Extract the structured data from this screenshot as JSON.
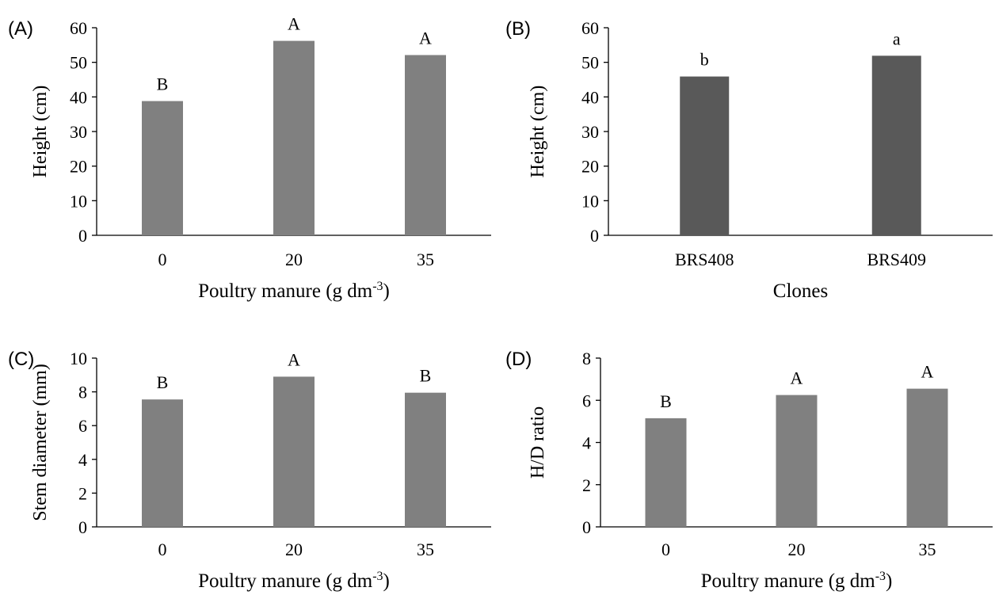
{
  "chart_data": [
    {
      "panel": "(A)",
      "type": "bar",
      "categories": [
        "0",
        "20",
        "35"
      ],
      "values": [
        38.8,
        56.2,
        52.1
      ],
      "letters": [
        "B",
        "A",
        "A"
      ],
      "xlabel": "Poultry manure (g dm",
      "xlabel_sup": "-3",
      "xlabel_end": ")",
      "ylabel": "Height (cm)",
      "ylim": [
        0,
        60
      ],
      "yticks": [
        0,
        10,
        20,
        30,
        40,
        50,
        60
      ],
      "color": "#808080",
      "grid": false,
      "legend": "none"
    },
    {
      "panel": "(B)",
      "type": "bar",
      "categories": [
        "BRS408",
        "BRS409"
      ],
      "values": [
        45.9,
        51.9
      ],
      "letters": [
        "b",
        "a"
      ],
      "xlabel": "Clones",
      "xlabel_sup": "",
      "xlabel_end": "",
      "ylabel": "Height (cm)",
      "ylim": [
        0,
        60
      ],
      "yticks": [
        0,
        10,
        20,
        30,
        40,
        50,
        60
      ],
      "color": "#595959",
      "grid": false,
      "legend": "none"
    },
    {
      "panel": "(C)",
      "type": "bar",
      "categories": [
        "0",
        "20",
        "35"
      ],
      "values": [
        7.55,
        8.9,
        7.95
      ],
      "letters": [
        "B",
        "A",
        "B"
      ],
      "xlabel": "Poultry manure (g dm",
      "xlabel_sup": "-3",
      "xlabel_end": ")",
      "ylabel": "Stem diameter (mm)",
      "ylim": [
        0,
        10
      ],
      "yticks": [
        0,
        2,
        4,
        6,
        8,
        10
      ],
      "color": "#808080",
      "grid": false,
      "legend": "none"
    },
    {
      "panel": "(D)",
      "type": "bar",
      "categories": [
        "0",
        "20",
        "35"
      ],
      "values": [
        5.15,
        6.25,
        6.55
      ],
      "letters": [
        "B",
        "A",
        "A"
      ],
      "xlabel": "Poultry manure (g dm",
      "xlabel_sup": "-3",
      "xlabel_end": ")",
      "ylabel": "H/D ratio",
      "ylim": [
        0,
        8
      ],
      "yticks": [
        0,
        2,
        4,
        6,
        8
      ],
      "color": "#808080",
      "grid": false,
      "legend": "none"
    }
  ]
}
